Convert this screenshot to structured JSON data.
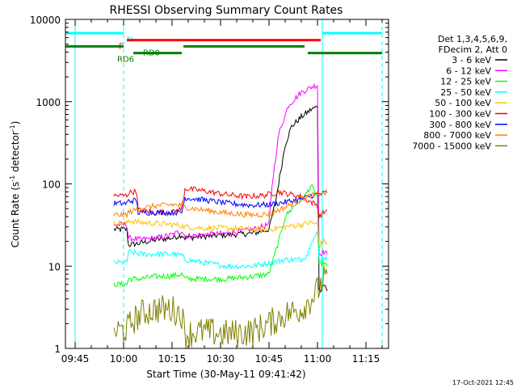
{
  "chart_data": {
    "type": "line",
    "title": "RHESSI Observing Summary Count Rates",
    "xlabel": "Start Time (30-May-11 09:41:42)",
    "ylabel": "Count Rate (s",
    "ylabel_sup": "-1",
    "ylabel_rest": " detector",
    "ylabel_sup2": "-1",
    "ylabel_end": ")",
    "y_scale": "log",
    "ylim": [
      1,
      10000
    ],
    "xlim_minutes": [
      -18,
      82
    ],
    "x_ticks": [
      {
        "label": "09:45",
        "min": -15
      },
      {
        "label": "10:00",
        "min": 0
      },
      {
        "label": "10:15",
        "min": 15
      },
      {
        "label": "10:30",
        "min": 30
      },
      {
        "label": "10:45",
        "min": 45
      },
      {
        "label": "11:00",
        "min": 60
      },
      {
        "label": "11:15",
        "min": 75
      }
    ],
    "y_ticks": [
      {
        "label": "1",
        "v": 1
      },
      {
        "label": "10",
        "v": 10
      },
      {
        "label": "100",
        "v": 100
      },
      {
        "label": "1000",
        "v": 1000
      },
      {
        "label": "10000",
        "v": 10000
      }
    ],
    "legend_header": [
      "Det 1,3,4,5,6,9,",
      "FDecim 2, Att 0"
    ],
    "legend_placement": "right",
    "timestamp": "17-Oct-2021 12:45",
    "series": [
      {
        "name": "3 - 6 keV",
        "color": "#000000",
        "points": [
          [
            -3,
            28
          ],
          [
            1,
            28
          ],
          [
            1.5,
            18
          ],
          [
            5,
            19
          ],
          [
            10,
            21
          ],
          [
            15,
            22
          ],
          [
            18,
            24
          ],
          [
            19,
            22
          ],
          [
            25,
            23
          ],
          [
            32,
            24
          ],
          [
            40,
            25
          ],
          [
            45,
            28
          ],
          [
            47,
            60
          ],
          [
            50,
            300
          ],
          [
            52,
            500
          ],
          [
            55,
            650
          ],
          [
            58,
            800
          ],
          [
            60,
            870
          ],
          [
            60.5,
            5
          ],
          [
            62,
            6
          ],
          [
            63,
            5
          ]
        ]
      },
      {
        "name": "6 - 12 keV",
        "color": "#ff00ff",
        "points": [
          [
            -3,
            32
          ],
          [
            1,
            32
          ],
          [
            1.5,
            22
          ],
          [
            5,
            21
          ],
          [
            10,
            22
          ],
          [
            15,
            24
          ],
          [
            18,
            27
          ],
          [
            19,
            23
          ],
          [
            25,
            24
          ],
          [
            32,
            25
          ],
          [
            40,
            28
          ],
          [
            45,
            32
          ],
          [
            46,
            100
          ],
          [
            48,
            400
          ],
          [
            51,
            900
          ],
          [
            55,
            1300
          ],
          [
            58,
            1500
          ],
          [
            60,
            1600
          ],
          [
            60.5,
            14
          ],
          [
            62,
            15
          ],
          [
            63,
            14
          ]
        ]
      },
      {
        "name": "12 - 25 keV",
        "color": "#00ff00",
        "points": [
          [
            -3,
            6
          ],
          [
            1,
            6
          ],
          [
            1.5,
            7
          ],
          [
            5,
            7
          ],
          [
            10,
            7.5
          ],
          [
            15,
            7.6
          ],
          [
            18,
            8
          ],
          [
            19,
            7
          ],
          [
            25,
            7
          ],
          [
            32,
            7
          ],
          [
            40,
            7.5
          ],
          [
            45,
            8
          ],
          [
            48,
            20
          ],
          [
            50,
            40
          ],
          [
            53,
            55
          ],
          [
            56,
            70
          ],
          [
            58,
            95
          ],
          [
            60,
            70
          ],
          [
            60.5,
            10
          ],
          [
            62,
            11
          ],
          [
            63,
            10
          ]
        ]
      },
      {
        "name": "25 - 50 keV",
        "color": "#00ffff",
        "points": [
          [
            -3,
            11
          ],
          [
            1,
            11
          ],
          [
            1.5,
            15
          ],
          [
            5,
            14
          ],
          [
            10,
            14
          ],
          [
            15,
            14
          ],
          [
            18,
            13.5
          ],
          [
            19,
            12
          ],
          [
            25,
            11
          ],
          [
            32,
            10
          ],
          [
            40,
            10
          ],
          [
            45,
            11
          ],
          [
            50,
            12
          ],
          [
            55,
            12
          ],
          [
            57,
            14
          ],
          [
            58,
            20
          ],
          [
            60,
            25
          ],
          [
            60.5,
            12
          ],
          [
            62,
            13
          ],
          [
            63,
            12
          ]
        ]
      },
      {
        "name": "50 - 100 keV",
        "color": "#ffc000",
        "points": [
          [
            -3,
            33
          ],
          [
            1,
            33
          ],
          [
            1.5,
            36
          ],
          [
            5,
            34
          ],
          [
            10,
            33
          ],
          [
            15,
            32
          ],
          [
            18,
            31
          ],
          [
            19,
            30
          ],
          [
            25,
            29
          ],
          [
            32,
            29
          ],
          [
            40,
            28
          ],
          [
            45,
            28
          ],
          [
            50,
            30
          ],
          [
            55,
            32
          ],
          [
            58,
            34
          ],
          [
            60,
            32
          ],
          [
            60.5,
            18
          ],
          [
            62,
            20
          ],
          [
            63,
            19
          ]
        ]
      },
      {
        "name": "100 - 300 keV",
        "color": "#ff0000",
        "points": [
          [
            -3,
            72
          ],
          [
            1,
            72
          ],
          [
            1.5,
            78
          ],
          [
            4,
            82
          ],
          [
            4.5,
            48
          ],
          [
            10,
            45
          ],
          [
            15,
            45
          ],
          [
            18,
            50
          ],
          [
            19,
            88
          ],
          [
            25,
            82
          ],
          [
            32,
            74
          ],
          [
            38,
            70
          ],
          [
            43,
            72
          ],
          [
            48,
            80
          ],
          [
            55,
            70
          ],
          [
            58,
            60
          ],
          [
            60,
            55
          ],
          [
            60.5,
            40
          ],
          [
            62,
            45
          ],
          [
            63,
            48
          ]
        ]
      },
      {
        "name": "300 - 800 keV",
        "color": "#0000ff",
        "points": [
          [
            -3,
            58
          ],
          [
            1,
            58
          ],
          [
            1.5,
            62
          ],
          [
            4,
            63
          ],
          [
            4.5,
            45
          ],
          [
            10,
            45
          ],
          [
            15,
            45
          ],
          [
            18,
            45
          ],
          [
            19,
            68
          ],
          [
            25,
            64
          ],
          [
            32,
            58
          ],
          [
            40,
            55
          ],
          [
            45,
            56
          ],
          [
            50,
            60
          ],
          [
            55,
            65
          ],
          [
            58,
            72
          ],
          [
            60,
            75
          ],
          [
            63,
            78
          ]
        ]
      },
      {
        "name": "800 - 7000 keV",
        "color": "#ff8000",
        "points": [
          [
            -3,
            42
          ],
          [
            1,
            42
          ],
          [
            1.5,
            45
          ],
          [
            5,
            50
          ],
          [
            10,
            54
          ],
          [
            15,
            56
          ],
          [
            18,
            55
          ],
          [
            19,
            52
          ],
          [
            25,
            48
          ],
          [
            32,
            44
          ],
          [
            40,
            42
          ],
          [
            45,
            43
          ],
          [
            50,
            52
          ],
          [
            55,
            65
          ],
          [
            58,
            72
          ],
          [
            60,
            75
          ],
          [
            63,
            78
          ]
        ]
      },
      {
        "name": "7000 - 15000 keV",
        "color": "#808000",
        "points": [
          [
            -3,
            1.6
          ],
          [
            1,
            1.7
          ],
          [
            3,
            2.2
          ],
          [
            6,
            2.7
          ],
          [
            10,
            3
          ],
          [
            15,
            3
          ],
          [
            18,
            2.6
          ],
          [
            19,
            1.5
          ],
          [
            25,
            1.6
          ],
          [
            32,
            1.5
          ],
          [
            40,
            1.6
          ],
          [
            45,
            2
          ],
          [
            50,
            2.6
          ],
          [
            55,
            3
          ],
          [
            58,
            4
          ],
          [
            60,
            5
          ],
          [
            62,
            7
          ],
          [
            63,
            8
          ]
        ]
      }
    ],
    "flags": [
      {
        "label": "N",
        "color": "#00ffff",
        "segments": [
          [
            -18,
            0
          ],
          [
            61.5,
            80
          ]
        ],
        "v": 6800,
        "label_min": 1
      },
      {
        "label": "F",
        "color": "#ff0000",
        "segments": [
          [
            1,
            61
          ]
        ],
        "v": 5600,
        "label_min": -1.5
      },
      {
        "label": "RD0",
        "color": "#008000",
        "segments": [
          [
            -18,
            0
          ],
          [
            18.5,
            56
          ]
        ],
        "v": 4700,
        "label_min": 6
      },
      {
        "label": "RD6",
        "color": "#008000",
        "segments": [
          [
            3,
            18
          ],
          [
            57,
            80
          ]
        ],
        "v": 3900,
        "label_min": -2
      }
    ],
    "vlines": [
      {
        "min": -15,
        "color": "#00ffff",
        "dash": false
      },
      {
        "min": 0,
        "color": "#00ffff",
        "dash": true
      },
      {
        "min": 61.5,
        "color": "#00ffff",
        "dash": false
      },
      {
        "min": 80,
        "color": "#00ffff",
        "dash": true
      }
    ]
  }
}
